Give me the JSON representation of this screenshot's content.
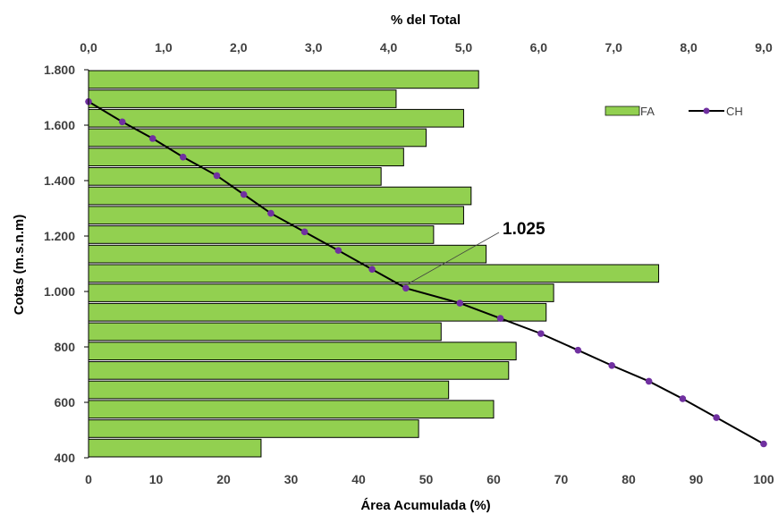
{
  "chart_data": {
    "type": "bar+line",
    "top_axis": {
      "label": "% del Total",
      "range": [
        0,
        9
      ],
      "ticks": [
        "0,0",
        "1,0",
        "2,0",
        "3,0",
        "4,0",
        "5,0",
        "6,0",
        "7,0",
        "8,0",
        "9,0"
      ]
    },
    "bottom_axis": {
      "label": "Área Acumulada (%)",
      "range": [
        0,
        100
      ],
      "ticks": [
        "0",
        "10",
        "20",
        "30",
        "40",
        "50",
        "60",
        "70",
        "80",
        "90",
        "100"
      ]
    },
    "y_axis": {
      "label": "Cotas (m.s.n.m)",
      "range": [
        400,
        1800
      ],
      "ticks": [
        {
          "value": 400,
          "label": "400"
        },
        {
          "value": 600,
          "label": "600"
        },
        {
          "value": 800,
          "label": "800"
        },
        {
          "value": 1000,
          "label": "1.000"
        },
        {
          "value": 1200,
          "label": "1.200"
        },
        {
          "value": 1400,
          "label": "1.400"
        },
        {
          "value": 1600,
          "label": "1.600"
        },
        {
          "value": 1800,
          "label": "1.800"
        }
      ]
    },
    "bars": {
      "name": "FA",
      "color": "#92d050",
      "bands": [
        [
          400,
          470
        ],
        [
          470,
          540
        ],
        [
          540,
          610
        ],
        [
          610,
          680
        ],
        [
          680,
          750
        ],
        [
          750,
          820
        ],
        [
          820,
          890
        ],
        [
          890,
          960
        ],
        [
          960,
          1030
        ],
        [
          1030,
          1100
        ],
        [
          1100,
          1170
        ],
        [
          1170,
          1240
        ],
        [
          1240,
          1310
        ],
        [
          1310,
          1380
        ],
        [
          1380,
          1450
        ],
        [
          1450,
          1520
        ],
        [
          1520,
          1590
        ],
        [
          1590,
          1660
        ],
        [
          1660,
          1730
        ],
        [
          1730,
          1800
        ]
      ],
      "values": [
        2.3,
        4.4,
        5.4,
        4.8,
        5.6,
        5.7,
        4.7,
        6.1,
        6.2,
        7.6,
        5.3,
        4.6,
        5.0,
        5.1,
        3.9,
        4.2,
        4.5,
        5.0,
        4.1,
        5.2
      ]
    },
    "line": {
      "name": "CH",
      "color": "#000000",
      "marker_color": "#7030a0",
      "points": [
        [
          0,
          1685
        ],
        [
          5,
          1612
        ],
        [
          9.5,
          1552
        ],
        [
          14,
          1485
        ],
        [
          19,
          1418
        ],
        [
          23,
          1350
        ],
        [
          27,
          1282
        ],
        [
          32,
          1215
        ],
        [
          37,
          1148
        ],
        [
          42,
          1080
        ],
        [
          47,
          1012
        ],
        [
          55,
          958
        ],
        [
          61,
          903
        ],
        [
          67,
          848
        ],
        [
          72.5,
          788
        ],
        [
          77.5,
          733
        ],
        [
          83,
          676
        ],
        [
          88,
          613
        ],
        [
          93,
          545
        ],
        [
          100,
          450
        ]
      ]
    },
    "annotation": {
      "text": "1.025",
      "x": 47,
      "y": 1012
    },
    "legend": {
      "position": "top-right"
    }
  }
}
